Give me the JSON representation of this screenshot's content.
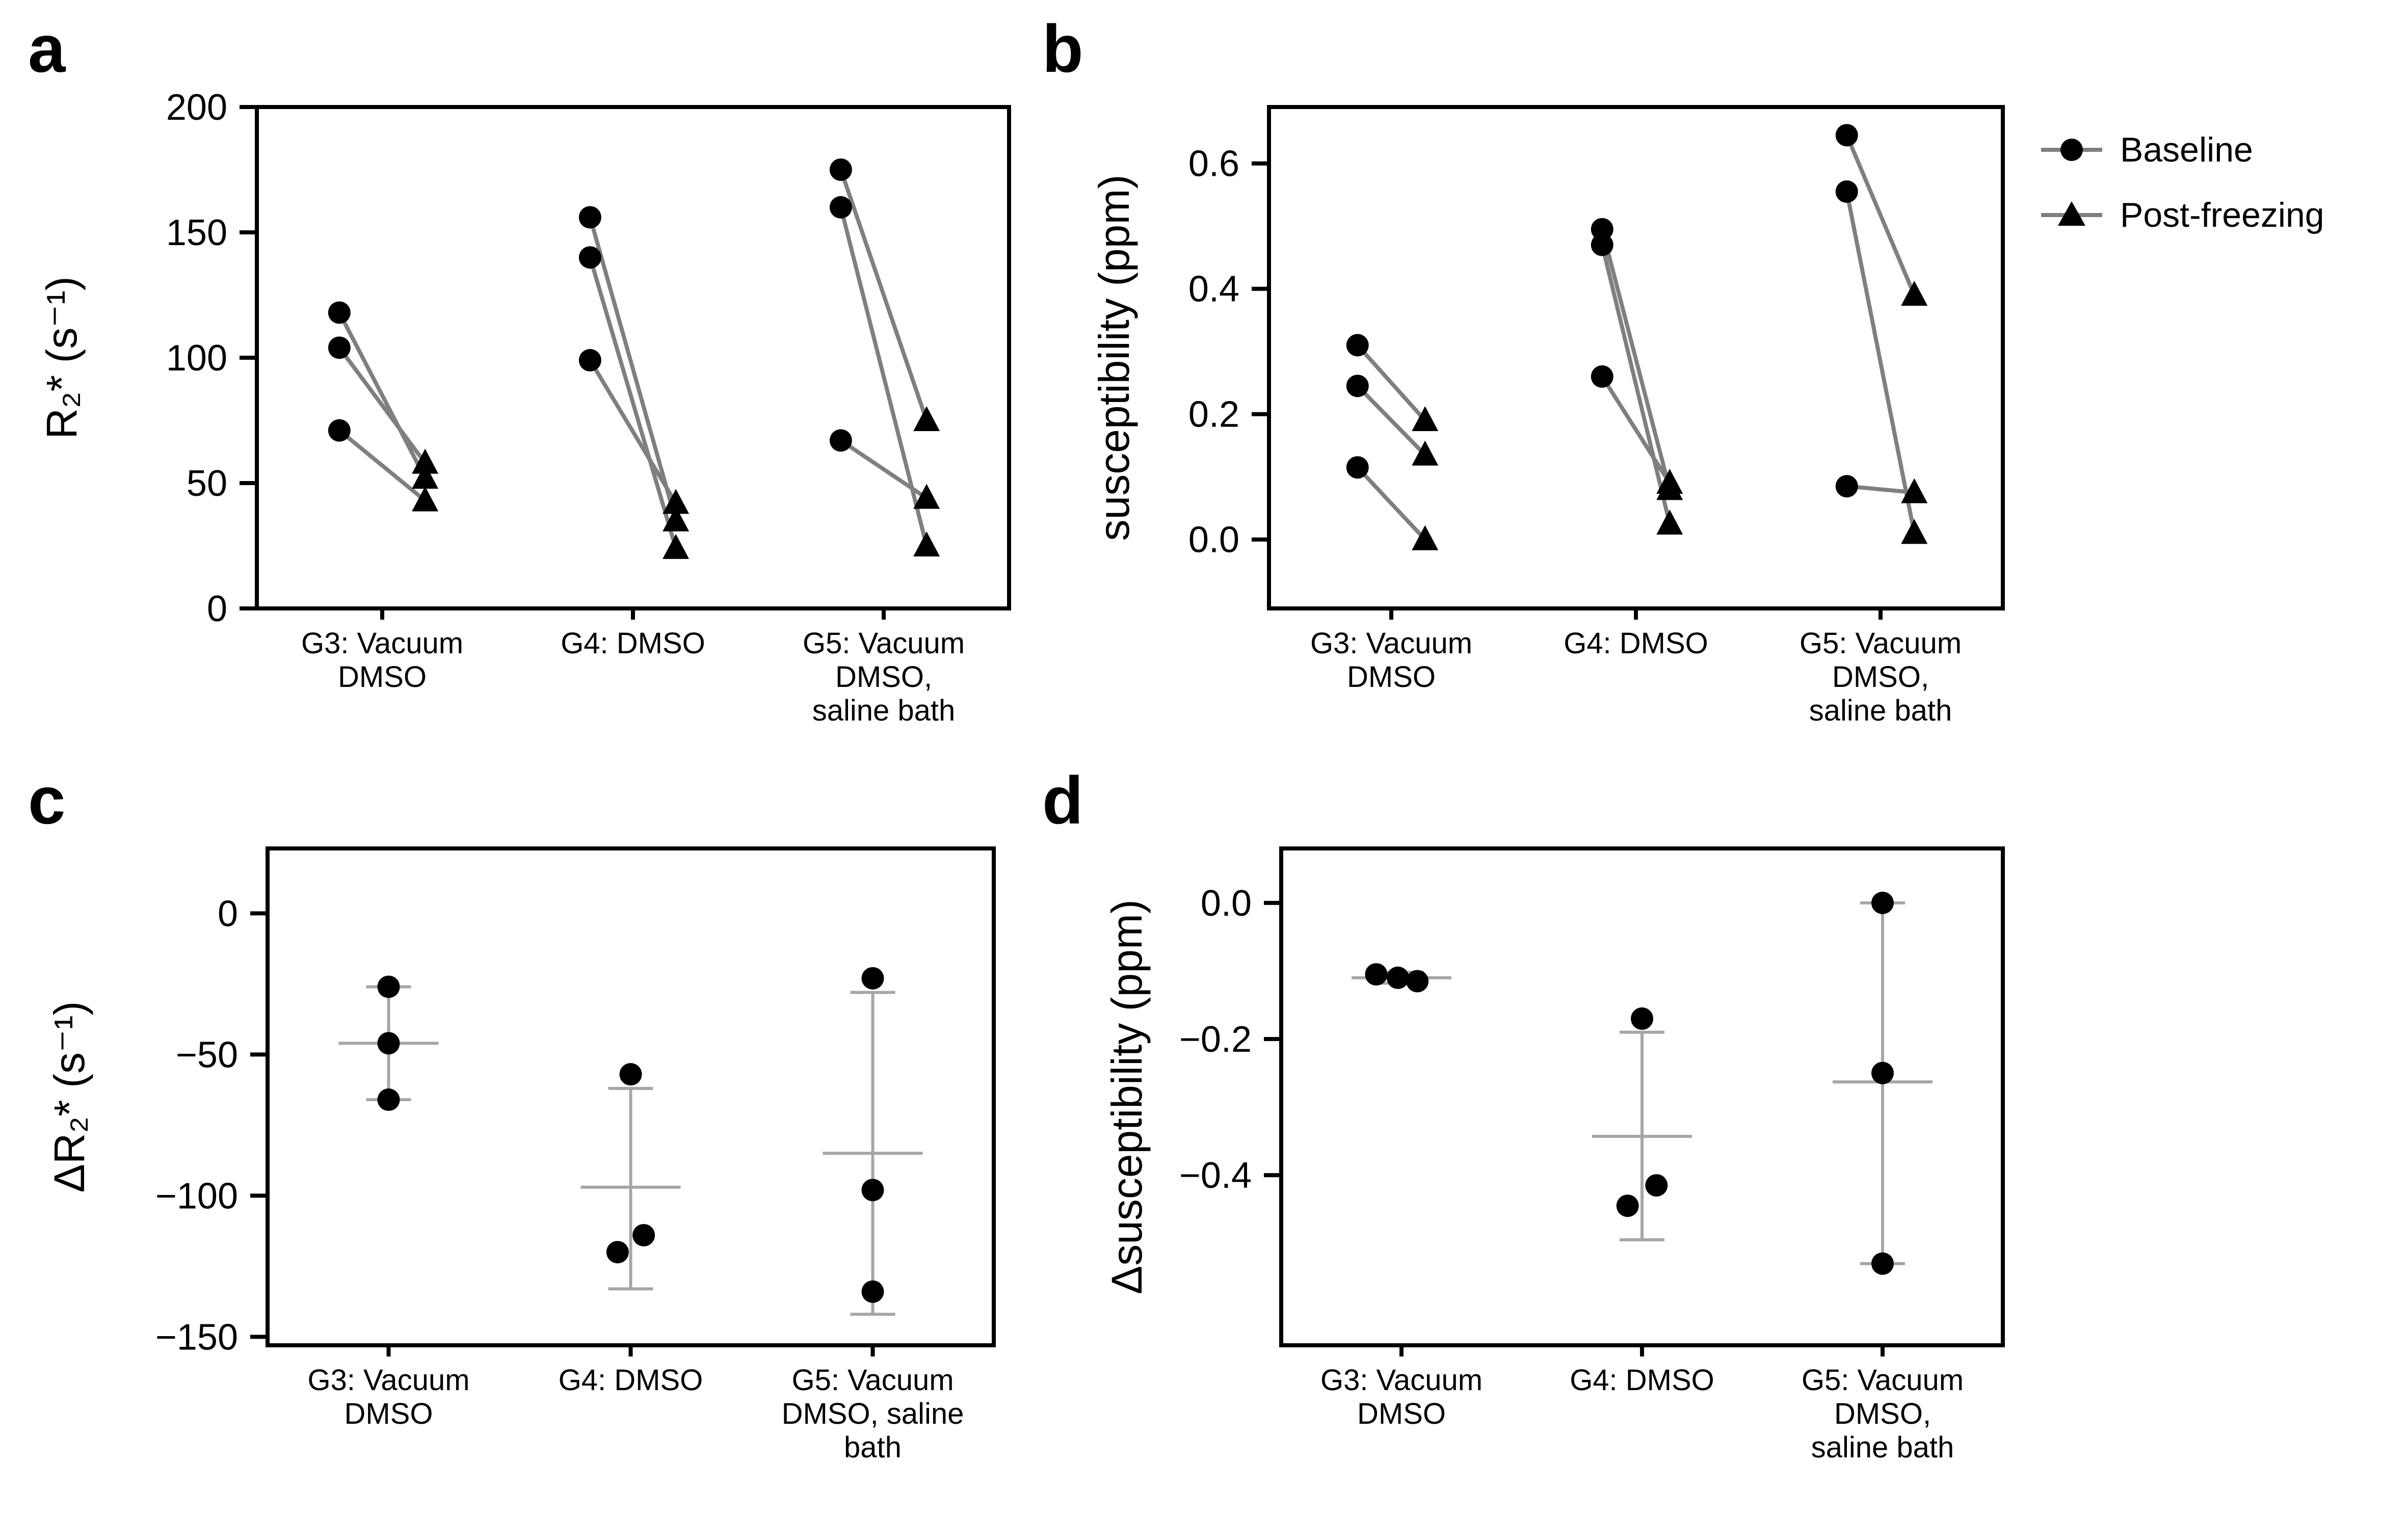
{
  "figure": {
    "background": "#ffffff",
    "axis_color": "#000000",
    "marker_color": "#000000",
    "pair_line_color": "#7f7f7f",
    "errorbar_color": "#a6a6a6"
  },
  "legend": {
    "items": [
      {
        "marker": "circle-icon",
        "label": "Baseline"
      },
      {
        "marker": "triangle-icon",
        "label": "Post-freezing"
      }
    ]
  },
  "chart_data": [
    {
      "id": "a",
      "type": "paired_scatter",
      "panel_label": "a",
      "title": "",
      "xlabel": "",
      "ylabel": "R₂* (s⁻¹)",
      "ylim": [
        0,
        200
      ],
      "yticks": [
        0,
        50,
        100,
        150,
        200
      ],
      "ytick_labels": [
        "0",
        "50",
        "100",
        "150",
        "200"
      ],
      "legend_position": "top-right-outside",
      "grid": false,
      "categories": [
        [
          "G3: Vacuum",
          "DMSO"
        ],
        [
          "G4: DMSO"
        ],
        [
          "G5: Vacuum",
          "DMSO,",
          "saline bath"
        ]
      ],
      "series_labels": {
        "baseline": "Baseline",
        "post": "Post-freezing"
      },
      "groups": [
        {
          "pairs": [
            [
              118,
              52
            ],
            [
              104,
              58
            ],
            [
              71,
              43
            ]
          ]
        },
        {
          "pairs": [
            [
              156,
              35
            ],
            [
              140,
              24
            ],
            [
              99,
              42
            ]
          ]
        },
        {
          "pairs": [
            [
              175,
              75
            ],
            [
              160,
              25
            ],
            [
              67,
              44
            ]
          ]
        }
      ]
    },
    {
      "id": "b",
      "type": "paired_scatter",
      "panel_label": "b",
      "title": "",
      "xlabel": "",
      "ylabel": "susceptibility (ppm)",
      "ylim": [
        -0.11,
        0.69
      ],
      "yticks": [
        0.0,
        0.2,
        0.4,
        0.6
      ],
      "ytick_labels": [
        "0.0",
        "0.2",
        "0.4",
        "0.6"
      ],
      "grid": false,
      "categories": [
        [
          "G3: Vacuum",
          "DMSO"
        ],
        [
          "G4: DMSO"
        ],
        [
          "G5: Vacuum",
          "DMSO,",
          "saline bath"
        ]
      ],
      "series_labels": {
        "baseline": "Baseline",
        "post": "Post-freezing"
      },
      "groups": [
        {
          "pairs": [
            [
              0.31,
              0.19
            ],
            [
              0.245,
              0.135
            ],
            [
              0.115,
              0.0
            ]
          ]
        },
        {
          "pairs": [
            [
              0.495,
              0.08
            ],
            [
              0.47,
              0.025
            ],
            [
              0.26,
              0.09
            ]
          ]
        },
        {
          "pairs": [
            [
              0.645,
              0.39
            ],
            [
              0.555,
              0.01
            ],
            [
              0.085,
              0.075
            ]
          ]
        }
      ]
    },
    {
      "id": "c",
      "type": "scatter_errorbar",
      "panel_label": "c",
      "title": "",
      "xlabel": "",
      "ylabel": "ΔR₂* (s⁻¹)",
      "ylim": [
        -153,
        23
      ],
      "yticks": [
        0,
        -50,
        -100,
        -150
      ],
      "ytick_labels": [
        "0",
        "−50",
        "−100",
        "−150"
      ],
      "grid": false,
      "categories": [
        [
          "G3: Vacuum",
          "DMSO"
        ],
        [
          "G4: DMSO"
        ],
        [
          "G5: Vacuum",
          "DMSO, saline",
          "bath"
        ]
      ],
      "groups": [
        {
          "points": [
            {
              "v": -26,
              "dx": 0
            },
            {
              "v": -46,
              "dx": 0
            },
            {
              "v": -66,
              "dx": 0
            }
          ],
          "mean": -46,
          "lo": -66,
          "hi": -26
        },
        {
          "points": [
            {
              "v": -57,
              "dx": 0
            },
            {
              "v": -120,
              "dx": -0.018
            },
            {
              "v": -114,
              "dx": 0.018
            }
          ],
          "mean": -97,
          "lo": -133,
          "hi": -62
        },
        {
          "points": [
            {
              "v": -23,
              "dx": 0
            },
            {
              "v": -98,
              "dx": 0
            },
            {
              "v": -134,
              "dx": 0
            }
          ],
          "mean": -85,
          "lo": -142,
          "hi": -28
        }
      ]
    },
    {
      "id": "d",
      "type": "scatter_errorbar",
      "panel_label": "d",
      "title": "",
      "xlabel": "",
      "ylabel": "Δsusceptibility (ppm)",
      "ylim": [
        -0.65,
        0.08
      ],
      "yticks": [
        0.0,
        -0.2,
        -0.4
      ],
      "ytick_labels": [
        "0.0",
        "−0.2",
        "−0.4"
      ],
      "grid": false,
      "categories": [
        [
          "G3: Vacuum",
          "DMSO"
        ],
        [
          "G4: DMSO"
        ],
        [
          "G5: Vacuum",
          "DMSO,",
          "saline bath"
        ]
      ],
      "groups": [
        {
          "points": [
            {
              "v": -0.105,
              "dx": -0.035
            },
            {
              "v": -0.11,
              "dx": -0.005
            },
            {
              "v": -0.115,
              "dx": 0.022
            }
          ],
          "mean": -0.11,
          "lo": -0.118,
          "hi": -0.102
        },
        {
          "points": [
            {
              "v": -0.17,
              "dx": 0
            },
            {
              "v": -0.445,
              "dx": -0.02
            },
            {
              "v": -0.415,
              "dx": 0.02
            }
          ],
          "mean": -0.343,
          "lo": -0.495,
          "hi": -0.19
        },
        {
          "points": [
            {
              "v": 0.0,
              "dx": 0
            },
            {
              "v": -0.25,
              "dx": 0
            },
            {
              "v": -0.53,
              "dx": 0
            }
          ],
          "mean": -0.263,
          "lo": -0.53,
          "hi": 0.0
        }
      ]
    }
  ]
}
